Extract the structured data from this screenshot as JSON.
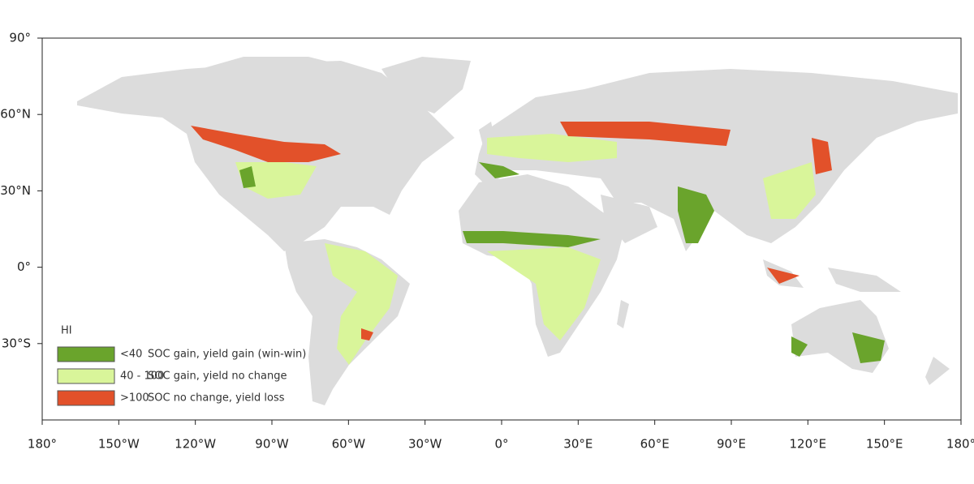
{
  "map": {
    "xlim": [
      -180,
      180
    ],
    "ylim": [
      -60,
      90
    ],
    "xticks": [
      {
        "value": -180,
        "label": "180°"
      },
      {
        "value": -150,
        "label": "150°W"
      },
      {
        "value": -120,
        "label": "120°W"
      },
      {
        "value": -90,
        "label": "90°W"
      },
      {
        "value": -60,
        "label": "60°W"
      },
      {
        "value": -30,
        "label": "30°W"
      },
      {
        "value": 0,
        "label": "0°"
      },
      {
        "value": 30,
        "label": "30°E"
      },
      {
        "value": 60,
        "label": "60°E"
      },
      {
        "value": 90,
        "label": "90°E"
      },
      {
        "value": 120,
        "label": "120°E"
      },
      {
        "value": 150,
        "label": "150°E"
      },
      {
        "value": 180,
        "label": "180°"
      }
    ],
    "yticks": [
      {
        "value": 90,
        "label": "90°"
      },
      {
        "value": 60,
        "label": "60°N"
      },
      {
        "value": 30,
        "label": "30°N"
      },
      {
        "value": 0,
        "label": "0°"
      },
      {
        "value": -30,
        "label": "30°S"
      }
    ],
    "legend": {
      "title": "HI",
      "items": [
        {
          "range": "<40",
          "label": "SOC gain, yield gain (win-win)",
          "color": "#6aa42c"
        },
        {
          "range": "40 - 100",
          "label": "SOC gain, yield no change",
          "color": "#d9f59a"
        },
        {
          "range": ">100",
          "label": "SOC no change, yield loss",
          "color": "#e2512a"
        }
      ]
    }
  }
}
